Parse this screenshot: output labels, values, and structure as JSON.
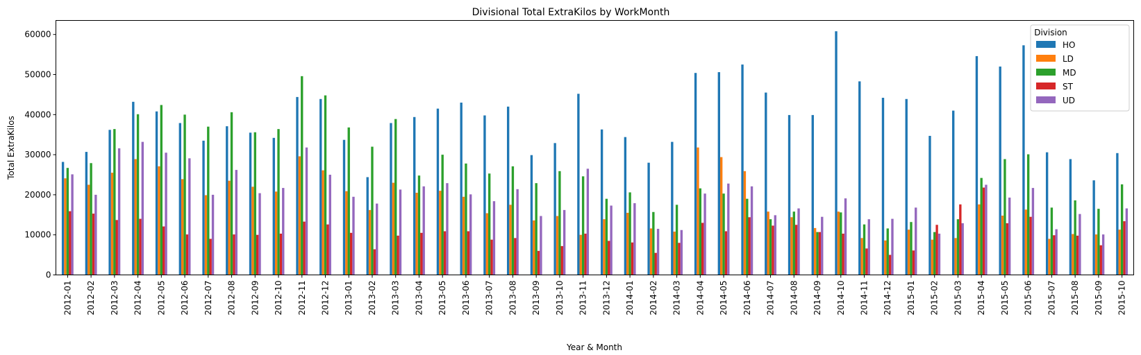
{
  "chart_data": {
    "type": "bar",
    "title": "Divisional Total ExtraKilos by WorkMonth",
    "xlabel": "Year & Month",
    "ylabel": "Total ExtraKilos",
    "ylim": [
      0,
      63500
    ],
    "yticks": [
      0,
      10000,
      20000,
      30000,
      40000,
      50000,
      60000
    ],
    "grid": false,
    "legend": {
      "title": "Division",
      "placement": "top-right"
    },
    "categories": [
      "2012-01",
      "2012-02",
      "2012-03",
      "2012-04",
      "2012-05",
      "2012-06",
      "2012-07",
      "2012-08",
      "2012-09",
      "2012-10",
      "2012-11",
      "2012-12",
      "2013-01",
      "2013-02",
      "2013-03",
      "2013-04",
      "2013-05",
      "2013-06",
      "2013-07",
      "2013-08",
      "2013-09",
      "2013-10",
      "2013-11",
      "2013-12",
      "2014-01",
      "2014-02",
      "2014-03",
      "2014-04",
      "2014-05",
      "2014-06",
      "2014-07",
      "2014-08",
      "2014-09",
      "2014-10",
      "2014-11",
      "2014-12",
      "2015-01",
      "2015-02",
      "2015-03",
      "2015-04",
      "2015-05",
      "2015-06",
      "2015-07",
      "2015-08",
      "2015-09",
      "2015-10"
    ],
    "series": [
      {
        "name": "HO",
        "color": "#1f77b4",
        "values": [
          28200,
          30700,
          36200,
          43200,
          40800,
          37900,
          33500,
          37100,
          35500,
          34200,
          44400,
          43900,
          33700,
          24400,
          37900,
          39400,
          41500,
          43000,
          39800,
          42000,
          29900,
          32900,
          45200,
          36300,
          34400,
          28000,
          33200,
          50400,
          50600,
          52500,
          45500,
          39900,
          39900,
          60800,
          48300,
          44200,
          43900,
          34700,
          41000,
          54600,
          52000,
          57300,
          30600,
          28900,
          23600,
          30400
        ]
      },
      {
        "name": "LD",
        "color": "#ff7f0e",
        "values": [
          24100,
          22500,
          25500,
          28900,
          27100,
          23900,
          19900,
          23500,
          22000,
          20800,
          29600,
          26100,
          20900,
          16200,
          23000,
          20500,
          21000,
          19500,
          15400,
          17500,
          13600,
          14700,
          10000,
          13900,
          15500,
          11600,
          10800,
          31800,
          29400,
          25900,
          15800,
          14400,
          11700,
          15800,
          9200,
          8600,
          11300,
          8800,
          9200,
          17600,
          14800,
          16300,
          9000,
          10200,
          10100,
          11300
        ]
      },
      {
        "name": "MD",
        "color": "#2ca02c",
        "values": [
          26700,
          27900,
          36400,
          40100,
          42400,
          40000,
          37000,
          40600,
          35600,
          36400,
          49600,
          44800,
          36800,
          32000,
          38900,
          24800,
          30000,
          27800,
          25300,
          27100,
          22900,
          25900,
          24600,
          19000,
          20600,
          15700,
          17500,
          21600,
          20300,
          19000,
          13900,
          15800,
          10700,
          15600,
          12600,
          11600,
          13200,
          10700,
          13900,
          24200,
          28900,
          30100,
          16800,
          18600,
          16500,
          22600
        ]
      },
      {
        "name": "ST",
        "color": "#d62728",
        "values": [
          15900,
          15300,
          13700,
          14000,
          12100,
          10100,
          9000,
          10100,
          10000,
          10300,
          13300,
          12600,
          10500,
          6400,
          9800,
          10500,
          10900,
          10900,
          8800,
          9200,
          6000,
          7200,
          10300,
          8500,
          8100,
          5500,
          8000,
          13000,
          10900,
          14400,
          12300,
          12500,
          10700,
          10300,
          6600,
          5000,
          6100,
          12500,
          17600,
          21800,
          12900,
          14500,
          9900,
          9800,
          7400,
          13400
        ]
      },
      {
        "name": "UD",
        "color": "#9467bd",
        "values": [
          25100,
          20000,
          31600,
          33200,
          30500,
          29100,
          20000,
          26200,
          20400,
          21700,
          31800,
          25000,
          19500,
          17800,
          21300,
          22100,
          22900,
          20100,
          18400,
          21400,
          14700,
          16200,
          26500,
          17300,
          17900,
          11500,
          11200,
          20300,
          22800,
          22100,
          14900,
          16600,
          14500,
          19100,
          13900,
          14000,
          16800,
          10300,
          12900,
          22500,
          19300,
          21700,
          11400,
          15200,
          10100,
          16600
        ]
      }
    ]
  }
}
